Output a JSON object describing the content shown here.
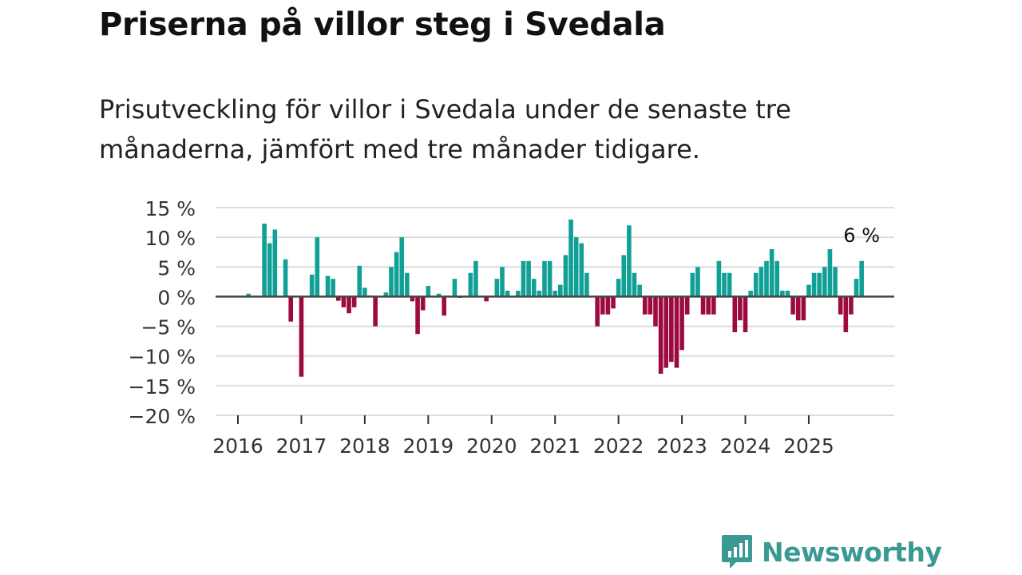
{
  "title": "Priserna på villor steg i Svedala",
  "subtitle": "Prisutveckling för villor i Svedala under de senaste tre månaderna, jämfört med tre månader tidigare.",
  "logo_text": "Newsworthy",
  "colors": {
    "positive": "#10a095",
    "negative": "#9c0a3f",
    "grid": "#dddddd",
    "zero": "#444444"
  },
  "chart_data": {
    "type": "bar",
    "title": "Priserna på villor steg i Svedala",
    "xlabel": "",
    "ylabel": "",
    "ylim": [
      -20,
      15
    ],
    "yticks": [
      15,
      10,
      5,
      0,
      -5,
      -10,
      -15,
      -20
    ],
    "ytick_labels": [
      "15 %",
      "10 %",
      "5 %",
      "0 %",
      "−5 %",
      "−10 %",
      "−15 %",
      "−20 %"
    ],
    "xtick_labels": [
      "2016",
      "2017",
      "2018",
      "2019",
      "2020",
      "2021",
      "2022",
      "2023",
      "2024",
      "2025"
    ],
    "grid": true,
    "start_month": "2016-01",
    "frequency": "monthly",
    "values": [
      null,
      null,
      0.5,
      null,
      null,
      12.3,
      9,
      11.3,
      null,
      6.3,
      -4.2,
      null,
      -13.5,
      null,
      3.7,
      10,
      null,
      3.5,
      3,
      -0.7,
      -1.8,
      -2.8,
      -1.8,
      5.2,
      1.5,
      0.2,
      -5,
      null,
      0.7,
      5,
      7.5,
      10,
      4,
      -0.8,
      -6.3,
      -2.3,
      1.8,
      null,
      0.5,
      -3.2,
      null,
      3,
      -0.2,
      null,
      4,
      6,
      null,
      -0.8,
      null,
      3,
      5,
      1,
      null,
      1,
      6,
      6,
      3,
      1,
      6,
      6,
      1,
      2,
      7,
      13,
      10,
      9,
      4,
      null,
      -5,
      -3,
      -3,
      -2,
      3,
      7,
      12,
      4,
      2,
      -3,
      -3,
      -5,
      -13,
      -12,
      -11,
      -12,
      -9,
      -3,
      4,
      5,
      -3,
      -3,
      -3,
      6,
      4,
      4,
      -6,
      -4,
      -6,
      1,
      4,
      5,
      6,
      8,
      6,
      1,
      1,
      -3,
      -4,
      -4,
      2,
      4,
      4,
      5,
      8,
      5,
      -3,
      -6,
      -3,
      3,
      6,
      null
    ],
    "annotation": "6 %"
  }
}
